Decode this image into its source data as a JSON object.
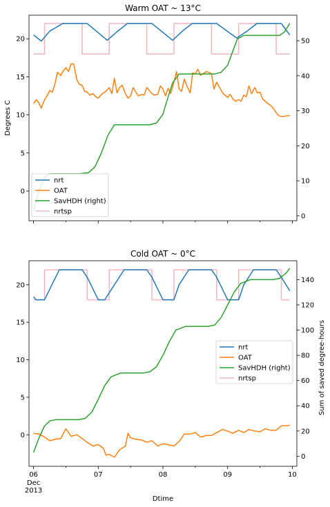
{
  "colors": {
    "nrt": "#1f77b4",
    "OAT": "#ff7f0e",
    "SavHDH": "#2ca02c",
    "nrtsp": "#f4b5bf"
  },
  "chart_data": [
    {
      "type": "line",
      "title": "Warm OAT ~ 13°C",
      "ylabel": "Degrees C",
      "xlabel": "",
      "ylim": [
        -3.9,
        23.1
      ],
      "y2lim": [
        -1.4,
        57.3
      ],
      "yticks": [
        "0",
        "5",
        "10",
        "15",
        "20"
      ],
      "y2ticks": [
        "0",
        "10",
        "20",
        "30",
        "40",
        "50"
      ],
      "xlim": [
        -0.07,
        4.07
      ],
      "xticks": [
        0,
        1,
        2,
        3,
        4
      ],
      "xticklabels": [],
      "grid": false,
      "legend_position": "lower-left",
      "legend": [
        "nrt",
        "OAT",
        "SavHDH (right)",
        "nrtsp"
      ],
      "series": [
        {
          "name": "nrt",
          "axis": "left",
          "color_key": "nrt",
          "x": [
            0,
            0.12,
            0.25,
            0.45,
            0.75,
            0.83,
            1.14,
            1.3,
            1.45,
            1.75,
            1.83,
            2.15,
            2.3,
            2.45,
            2.75,
            2.83,
            3.14,
            3.3,
            3.45,
            3.75,
            3.83,
            3.96
          ],
          "y": [
            20.5,
            19.7,
            21.0,
            22.0,
            22.0,
            22.0,
            19.8,
            21.0,
            22.0,
            22.0,
            22.0,
            19.8,
            21.0,
            22.0,
            22.0,
            22.0,
            20.1,
            21.0,
            22.0,
            22.0,
            22.0,
            20.5
          ]
        },
        {
          "name": "OAT",
          "axis": "left",
          "color_key": "OAT",
          "x": [
            0,
            0.04,
            0.08,
            0.12,
            0.17,
            0.21,
            0.25,
            0.29,
            0.33,
            0.37,
            0.42,
            0.46,
            0.5,
            0.54,
            0.58,
            0.62,
            0.67,
            0.71,
            0.75,
            0.79,
            0.83,
            0.87,
            0.92,
            0.96,
            1.0,
            1.04,
            1.08,
            1.12,
            1.17,
            1.21,
            1.25,
            1.29,
            1.33,
            1.37,
            1.42,
            1.46,
            1.5,
            1.54,
            1.58,
            1.62,
            1.67,
            1.71,
            1.75,
            1.79,
            1.83,
            1.87,
            1.92,
            1.96,
            2.0,
            2.04,
            2.08,
            2.12,
            2.17,
            2.21,
            2.25,
            2.29,
            2.33,
            2.37,
            2.42,
            2.46,
            2.5,
            2.54,
            2.58,
            2.62,
            2.67,
            2.71,
            2.75,
            2.79,
            2.83,
            2.87,
            2.92,
            2.96,
            3.0,
            3.04,
            3.08,
            3.12,
            3.17,
            3.21,
            3.25,
            3.29,
            3.33,
            3.37,
            3.42,
            3.46,
            3.5,
            3.54,
            3.58,
            3.62,
            3.67,
            3.71,
            3.75,
            3.79,
            3.83,
            3.87,
            3.92,
            3.96
          ],
          "y": [
            11.5,
            12.0,
            11.6,
            10.9,
            12.0,
            12.5,
            13.2,
            13.0,
            14.0,
            15.6,
            15.2,
            15.8,
            16.2,
            15.7,
            16.7,
            16.7,
            14.6,
            14.0,
            13.9,
            13.1,
            13.0,
            12.6,
            12.8,
            12.4,
            12.2,
            12.6,
            12.9,
            13.1,
            13.6,
            12.8,
            14.8,
            12.9,
            13.6,
            13.9,
            12.8,
            12.2,
            12.5,
            13.6,
            13.0,
            12.5,
            12.7,
            12.6,
            13.6,
            13.2,
            12.8,
            12.6,
            12.7,
            13.8,
            13.4,
            12.5,
            13.5,
            12.8,
            14.3,
            15.7,
            13.4,
            13.1,
            14.7,
            13.8,
            12.9,
            15.5,
            15.4,
            16.0,
            15.2,
            15.4,
            15.7,
            15.6,
            15.4,
            13.4,
            14.3,
            13.7,
            12.9,
            12.6,
            12.3,
            12.7,
            12.1,
            11.8,
            12.0,
            11.8,
            12.6,
            12.4,
            13.8,
            12.8,
            13.6,
            12.9,
            13.0,
            12.1,
            11.8,
            11.5,
            11.2,
            10.8,
            10.3,
            9.9,
            9.8,
            9.8,
            9.9,
            9.9
          ]
        },
        {
          "name": "SavHDH (right)",
          "axis": "right",
          "color_key": "SavHDH",
          "x": [
            0,
            0.08,
            0.17,
            0.25,
            0.35,
            0.5,
            0.7,
            0.85,
            0.95,
            1.05,
            1.15,
            1.25,
            1.4,
            1.6,
            1.8,
            1.9,
            2.0,
            2.08,
            2.15,
            2.25,
            2.4,
            2.6,
            2.8,
            2.9,
            3.0,
            3.08,
            3.15,
            3.25,
            3.4,
            3.6,
            3.8,
            3.88,
            3.96
          ],
          "y": [
            1.5,
            7.0,
            11.0,
            12.0,
            12.0,
            12.0,
            12.0,
            12.3,
            14.0,
            18.0,
            23.0,
            26.0,
            26.0,
            26.0,
            26.0,
            26.5,
            29.0,
            34.0,
            38.0,
            40.5,
            40.5,
            40.5,
            40.5,
            41.0,
            43.0,
            47.0,
            50.5,
            51.5,
            51.5,
            51.5,
            51.5,
            52.5,
            55.0
          ]
        },
        {
          "name": "nrtsp",
          "axis": "left",
          "color_key": "nrtsp",
          "step": true,
          "x": [
            0,
            0.17,
            0.17,
            0.75,
            0.75,
            1.17,
            1.17,
            1.75,
            1.75,
            2.17,
            2.17,
            2.75,
            2.75,
            3.17,
            3.17,
            3.75,
            3.75,
            3.96
          ],
          "y": [
            18,
            18,
            22,
            22,
            18,
            18,
            22,
            22,
            18,
            18,
            22,
            22,
            18,
            18,
            22,
            22,
            18,
            18
          ]
        }
      ]
    },
    {
      "type": "line",
      "title": "Cold OAT ~ 0°C",
      "ylabel": "",
      "y2label": "Sum of saved degree-hours",
      "xlabel": "Dtime",
      "ylim": [
        -4.2,
        23.2
      ],
      "y2lim": [
        -8,
        155
      ],
      "yticks": [
        "0",
        "5",
        "10",
        "15",
        "20"
      ],
      "y2ticks": [
        "0",
        "20",
        "40",
        "60",
        "80",
        "100",
        "120",
        "140"
      ],
      "xlim": [
        -0.07,
        4.07
      ],
      "xticks": [
        0,
        1,
        2,
        3,
        4
      ],
      "xticklabels": [
        "06",
        "07",
        "08",
        "09",
        "10"
      ],
      "xtick_sublabel": [
        "Dec",
        "2013"
      ],
      "grid": false,
      "legend_position": "center-right",
      "legend": [
        "nrt",
        "OAT",
        "SavHDH (right)",
        "nrtsp"
      ],
      "series": [
        {
          "name": "nrt",
          "axis": "left",
          "color_key": "nrt",
          "x": [
            0,
            0.04,
            0.17,
            0.33,
            0.4,
            0.55,
            0.75,
            0.83,
            1.0,
            1.1,
            1.25,
            1.4,
            1.55,
            1.75,
            1.83,
            2.0,
            2.17,
            2.25,
            2.4,
            2.55,
            2.75,
            2.83,
            3.0,
            3.17,
            3.25,
            3.4,
            3.55,
            3.75,
            3.83,
            3.96
          ],
          "y": [
            18.4,
            18.0,
            18.0,
            20.8,
            22.0,
            22.0,
            22.0,
            21.0,
            18.0,
            18.0,
            20.0,
            22.0,
            22.0,
            22.0,
            21.0,
            18.0,
            18.0,
            20.0,
            22.0,
            22.0,
            22.0,
            21.0,
            18.0,
            18.0,
            20.0,
            22.0,
            22.0,
            22.0,
            21.0,
            19.2
          ]
        },
        {
          "name": "OAT",
          "axis": "left",
          "color_key": "OAT",
          "x": [
            0,
            0.08,
            0.17,
            0.25,
            0.33,
            0.42,
            0.5,
            0.58,
            0.67,
            0.75,
            0.83,
            0.92,
            1.0,
            1.08,
            1.12,
            1.17,
            1.25,
            1.33,
            1.42,
            1.46,
            1.5,
            1.58,
            1.67,
            1.75,
            1.83,
            1.92,
            2.0,
            2.08,
            2.17,
            2.25,
            2.33,
            2.42,
            2.5,
            2.58,
            2.67,
            2.75,
            2.83,
            2.92,
            3.0,
            3.08,
            3.17,
            3.25,
            3.33,
            3.42,
            3.5,
            3.58,
            3.67,
            3.75,
            3.83,
            3.92,
            3.96
          ],
          "y": [
            0.2,
            0.1,
            -0.3,
            -0.8,
            -0.6,
            -0.5,
            0.8,
            -0.2,
            0.0,
            -0.5,
            -1.0,
            -1.5,
            -1.3,
            -1.8,
            -2.7,
            -2.6,
            -3.0,
            -2.0,
            -1.5,
            0.2,
            -0.4,
            -0.6,
            -0.7,
            -1.0,
            -0.8,
            -1.5,
            -1.2,
            -1.3,
            -1.5,
            -0.9,
            0.1,
            0.1,
            0.3,
            -0.3,
            -0.1,
            -0.1,
            0.3,
            0.7,
            0.5,
            0.2,
            0.6,
            0.3,
            0.7,
            0.5,
            0.4,
            0.8,
            0.6,
            0.6,
            1.2,
            1.2,
            1.3
          ]
        },
        {
          "name": "SavHDH (right)",
          "axis": "right",
          "color_key": "SavHDH",
          "x": [
            0,
            0.08,
            0.17,
            0.25,
            0.35,
            0.5,
            0.7,
            0.8,
            0.9,
            1.0,
            1.1,
            1.2,
            1.35,
            1.5,
            1.7,
            1.8,
            1.9,
            2.0,
            2.1,
            2.2,
            2.35,
            2.5,
            2.7,
            2.8,
            2.9,
            3.0,
            3.1,
            3.2,
            3.35,
            3.5,
            3.7,
            3.8,
            3.9,
            3.96
          ],
          "y": [
            3.0,
            14.0,
            24.0,
            28.0,
            29.0,
            29.0,
            29.0,
            30.0,
            35.0,
            45.0,
            56.0,
            63.0,
            66.0,
            66.0,
            66.0,
            67.0,
            71.0,
            80.0,
            91.0,
            100.0,
            103.0,
            103.0,
            103.0,
            104.0,
            110.0,
            120.0,
            130.0,
            137.0,
            140.0,
            140.0,
            140.0,
            141.0,
            145.0,
            149.0
          ]
        },
        {
          "name": "nrtsp",
          "axis": "left",
          "color_key": "nrtsp",
          "step": true,
          "x": [
            0,
            0.17,
            0.17,
            0.83,
            0.83,
            1.17,
            1.17,
            1.83,
            1.83,
            2.17,
            2.17,
            2.83,
            2.83,
            3.17,
            3.17,
            3.83,
            3.83,
            3.96
          ],
          "y": [
            18,
            18,
            22,
            22,
            18,
            18,
            22,
            22,
            18,
            18,
            22,
            22,
            18,
            18,
            22,
            22,
            18,
            18
          ]
        }
      ]
    }
  ]
}
